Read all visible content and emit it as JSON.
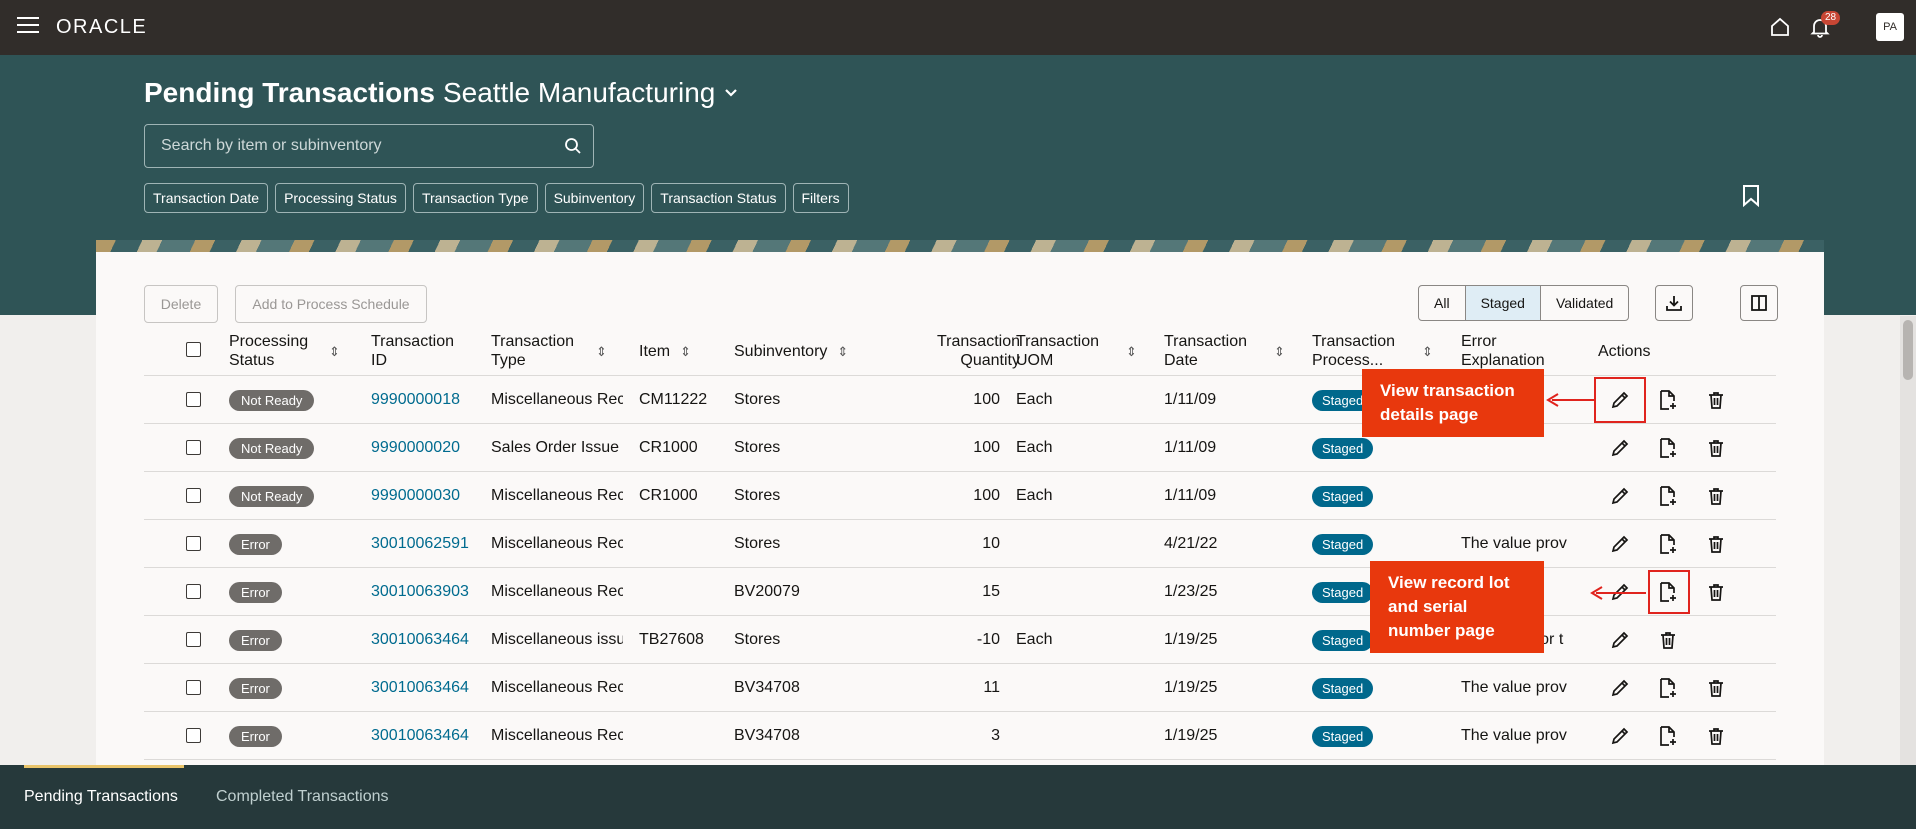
{
  "app": {
    "brand": "ORACLE",
    "notification_count": "28",
    "user_initials": "PA"
  },
  "page": {
    "title": "Pending Transactions",
    "organization": "Seattle Manufacturing"
  },
  "search": {
    "placeholder": "Search by item or subinventory"
  },
  "filters": [
    "Transaction Date",
    "Processing Status",
    "Transaction Type",
    "Subinventory",
    "Transaction Status",
    "Filters"
  ],
  "toolbar": {
    "delete_label": "Delete",
    "add_schedule_label": "Add to Process Schedule"
  },
  "view_toggle": {
    "options": [
      "All",
      "Staged",
      "Validated"
    ],
    "selected": "Staged"
  },
  "table": {
    "columns": {
      "processing_status": "Processing Status",
      "transaction_id": "Transaction ID",
      "transaction_type": "Transaction Type",
      "item": "Item",
      "subinventory": "Subinventory",
      "quantity": "Transaction Quantity",
      "uom": "Transaction UOM",
      "date": "Transaction Date",
      "process": "Transaction Process...",
      "error": "Error Explanation",
      "actions": "Actions"
    },
    "rows": [
      {
        "status": "Not Ready",
        "id": "9990000018",
        "type": "Miscellaneous Rec",
        "item": "CM11222",
        "sub": "Stores",
        "qty": "100",
        "uom": "Each",
        "date": "1/11/09",
        "process": "Staged",
        "error": ""
      },
      {
        "status": "Not Ready",
        "id": "9990000020",
        "type": "Sales Order Issue",
        "item": "CR1000",
        "sub": "Stores",
        "qty": "100",
        "uom": "Each",
        "date": "1/11/09",
        "process": "Staged",
        "error": ""
      },
      {
        "status": "Not Ready",
        "id": "9990000030",
        "type": "Miscellaneous Rec",
        "item": "CR1000",
        "sub": "Stores",
        "qty": "100",
        "uom": "Each",
        "date": "1/11/09",
        "process": "Staged",
        "error": ""
      },
      {
        "status": "Error",
        "id": "30010062591",
        "type": "Miscellaneous Rec",
        "item": "",
        "sub": "Stores",
        "qty": "10",
        "uom": "",
        "date": "4/21/22",
        "process": "Staged",
        "error": "The value prov"
      },
      {
        "status": "Error",
        "id": "30010063903",
        "type": "Miscellaneous Rec",
        "item": "",
        "sub": "BV20079",
        "qty": "15",
        "uom": "",
        "date": "1/23/25",
        "process": "Staged",
        "error": ""
      },
      {
        "status": "Error",
        "id": "30010063464",
        "type": "Miscellaneous issu",
        "item": "TB27608",
        "sub": "Stores",
        "qty": "-10",
        "uom": "Each",
        "date": "1/19/25",
        "process": "Staged",
        "error": "The value for t"
      },
      {
        "status": "Error",
        "id": "30010063464",
        "type": "Miscellaneous Rec",
        "item": "",
        "sub": "BV34708",
        "qty": "11",
        "uom": "",
        "date": "1/19/25",
        "process": "Staged",
        "error": "The value prov"
      },
      {
        "status": "Error",
        "id": "30010063464",
        "type": "Miscellaneous Rec",
        "item": "",
        "sub": "BV34708",
        "qty": "3",
        "uom": "",
        "date": "1/19/25",
        "process": "Staged",
        "error": "The value prov"
      }
    ]
  },
  "callouts": {
    "details": "View transaction details page",
    "lot_serial": "View record lot and serial number page"
  },
  "bottom_tabs": {
    "pending": "Pending Transactions",
    "completed": "Completed Transactions"
  },
  "colors": {
    "header": "#2f5456",
    "topbar": "#312d2a",
    "callout": "#e8380d",
    "staged": "#00688c"
  }
}
